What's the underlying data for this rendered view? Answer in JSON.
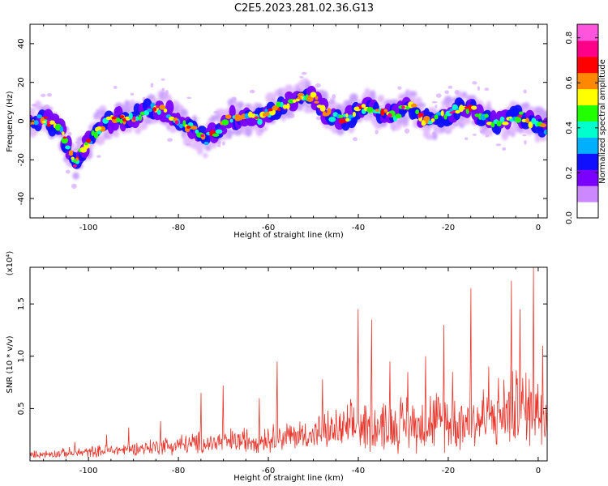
{
  "title": "C2E5.2023.281.02.36.G13",
  "chart_data": [
    {
      "type": "heatmap",
      "xlabel": "Height of straight line (km)",
      "ylabel": "Frequency (Hz)",
      "xlim": [
        -113,
        2
      ],
      "ylim": [
        -50,
        50
      ],
      "xticks": [
        -100,
        -80,
        -60,
        -40,
        -20,
        0
      ],
      "yticks": [
        -40,
        -20,
        0,
        20,
        40
      ],
      "ridge": {
        "x": [
          -113,
          -110,
          -107,
          -105,
          -104,
          -103,
          -102,
          -100,
          -98,
          -96,
          -94,
          -92,
          -90,
          -88,
          -86,
          -84,
          -82,
          -80,
          -78,
          -76,
          -74,
          -72,
          -70,
          -68,
          -66,
          -64,
          -62,
          -60,
          -58,
          -56,
          -54,
          -52,
          -50,
          -48,
          -46,
          -44,
          -42,
          -40,
          -38,
          -36,
          -34,
          -32,
          -30,
          -28,
          -26,
          -24,
          -22,
          -20,
          -18,
          -16,
          -14,
          -12,
          -10,
          -8,
          -6,
          -4,
          -2,
          0,
          2
        ],
        "y": [
          0,
          1,
          -2,
          -10,
          -18,
          -22,
          -17,
          -11,
          -5,
          0,
          1,
          1,
          2,
          4,
          6,
          6,
          4,
          0,
          -3,
          -6,
          -10,
          -6,
          -1,
          2,
          1,
          3,
          1,
          4,
          7,
          9,
          12,
          13,
          13,
          6,
          3,
          1,
          2,
          6,
          7,
          6,
          4,
          3,
          6,
          7,
          2,
          -2,
          2,
          3,
          6,
          6,
          5,
          1,
          0,
          -1,
          2,
          3,
          0,
          -2,
          -4
        ]
      },
      "colorbar": {
        "label": "Normalized spectral amplitude",
        "ticks": [
          0.0,
          0.2,
          0.4,
          0.6,
          0.8
        ],
        "range": [
          0,
          0.86
        ],
        "colors": [
          "#ffffff",
          "#cc88ff",
          "#7a00ff",
          "#1010ff",
          "#00b0ff",
          "#00ffcc",
          "#22ff00",
          "#ffff00",
          "#ff8800",
          "#ff0000",
          "#ff0088",
          "#ff55dd"
        ]
      }
    },
    {
      "type": "line",
      "xlabel": "Height of straight line (km)",
      "ylabel": "SNR (10 * v/v)",
      "scale_note": "(x10⁴)",
      "xlim": [
        -113,
        2
      ],
      "ylim": [
        0,
        1.85
      ],
      "xticks": [
        -100,
        -80,
        -60,
        -40,
        -20,
        0
      ],
      "yticks": [
        0.5,
        1.0,
        1.5
      ],
      "color": "#e8372d",
      "envelope": {
        "x": [
          -113,
          -100,
          -90,
          -80,
          -70,
          -60,
          -50,
          -40,
          -30,
          -20,
          -10,
          -5,
          0,
          2
        ],
        "base": [
          0.05,
          0.07,
          0.1,
          0.13,
          0.15,
          0.18,
          0.22,
          0.26,
          0.28,
          0.3,
          0.33,
          0.4,
          0.4,
          0.4
        ],
        "amp": [
          0.06,
          0.1,
          0.12,
          0.18,
          0.22,
          0.25,
          0.28,
          0.45,
          0.5,
          0.55,
          0.6,
          0.7,
          0.75,
          0.75
        ]
      },
      "spikes": [
        {
          "x": -103,
          "y": 0.18
        },
        {
          "x": -96,
          "y": 0.25
        },
        {
          "x": -91,
          "y": 0.32
        },
        {
          "x": -84,
          "y": 0.38
        },
        {
          "x": -75,
          "y": 0.65
        },
        {
          "x": -70,
          "y": 0.72
        },
        {
          "x": -62,
          "y": 0.6
        },
        {
          "x": -58,
          "y": 0.95
        },
        {
          "x": -48,
          "y": 0.78
        },
        {
          "x": -40,
          "y": 1.45
        },
        {
          "x": -37,
          "y": 1.35
        },
        {
          "x": -33,
          "y": 0.95
        },
        {
          "x": -29,
          "y": 0.85
        },
        {
          "x": -25,
          "y": 1.0
        },
        {
          "x": -21,
          "y": 1.3
        },
        {
          "x": -19,
          "y": 0.85
        },
        {
          "x": -15,
          "y": 1.65
        },
        {
          "x": -11,
          "y": 0.9
        },
        {
          "x": -6,
          "y": 1.72
        },
        {
          "x": -4,
          "y": 1.45
        },
        {
          "x": -1,
          "y": 1.85
        },
        {
          "x": 1,
          "y": 1.1
        }
      ]
    }
  ]
}
